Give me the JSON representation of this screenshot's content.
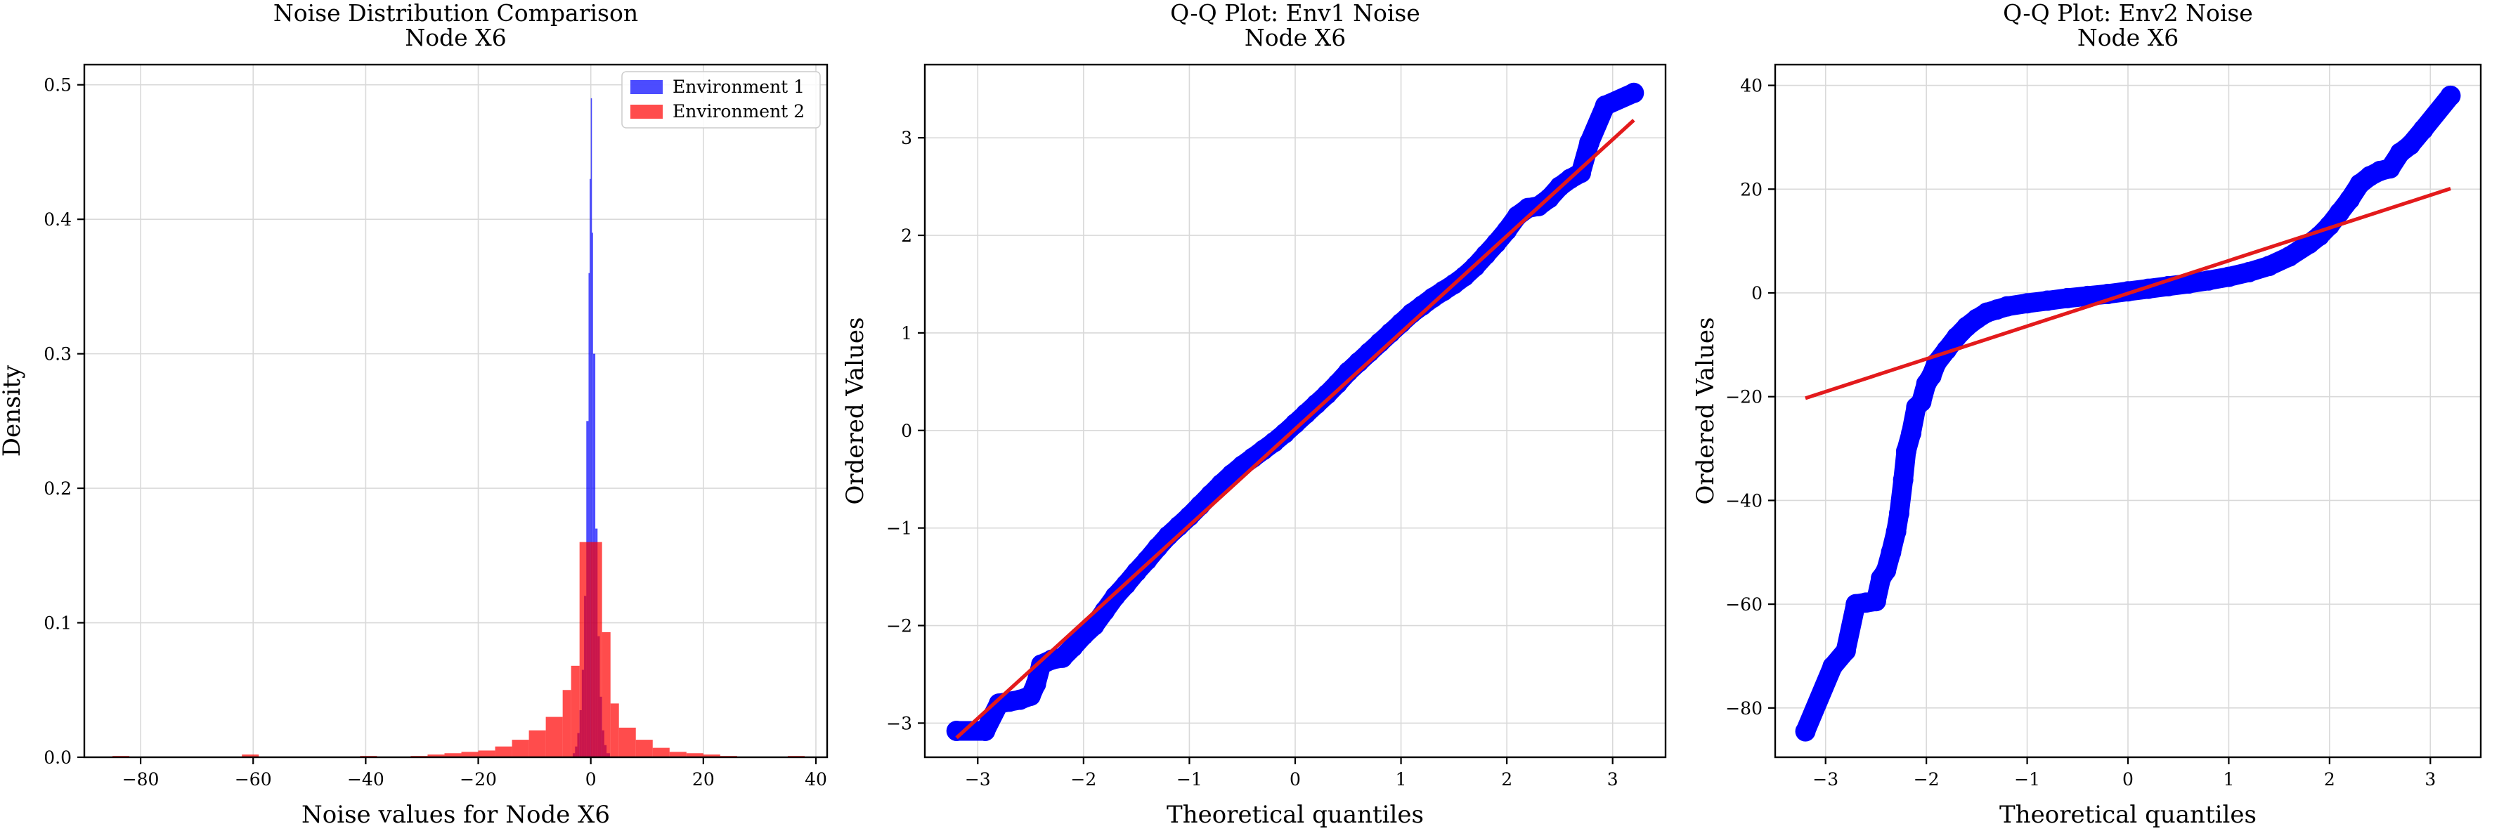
{
  "colors": {
    "env1": "#0000ff",
    "env2": "#ff0000",
    "grid": "#d9d9d9",
    "axis": "#000000",
    "fit_line": "#e31a1c"
  },
  "chart_data": [
    {
      "type": "histogram",
      "title": "Noise Distribution Comparison",
      "subtitle": "Node X6",
      "xlabel": "Noise values for Node X6",
      "ylabel": "Density",
      "xlim": [
        -90,
        42
      ],
      "ylim": [
        0,
        0.515
      ],
      "xticks": [
        -80,
        -60,
        -40,
        -20,
        0,
        20,
        40
      ],
      "yticks": [
        0.0,
        0.1,
        0.2,
        0.3,
        0.4,
        0.5
      ],
      "grid": true,
      "legend_position": "upper right",
      "series": [
        {
          "name": "Environment 1",
          "color": "#0000ff",
          "opacity": 0.7,
          "bins": [
            [
              -3.2,
              -2.8,
              0.003
            ],
            [
              -2.8,
              -2.4,
              0.008
            ],
            [
              -2.4,
              -2.0,
              0.018
            ],
            [
              -2.0,
              -1.6,
              0.035
            ],
            [
              -1.6,
              -1.2,
              0.065
            ],
            [
              -1.2,
              -0.8,
              0.12
            ],
            [
              -0.8,
              -0.4,
              0.25
            ],
            [
              -0.4,
              -0.2,
              0.36
            ],
            [
              -0.2,
              0.0,
              0.43
            ],
            [
              0.0,
              0.2,
              0.49
            ],
            [
              0.2,
              0.4,
              0.39
            ],
            [
              0.4,
              0.8,
              0.3
            ],
            [
              0.8,
              1.2,
              0.17
            ],
            [
              1.2,
              1.6,
              0.09
            ],
            [
              1.6,
              2.0,
              0.045
            ],
            [
              2.0,
              2.4,
              0.02
            ],
            [
              2.4,
              2.8,
              0.009
            ],
            [
              2.8,
              3.4,
              0.003
            ]
          ]
        },
        {
          "name": "Environment 2",
          "color": "#ff0000",
          "opacity": 0.7,
          "bins": [
            [
              -85,
              -82,
              0.001
            ],
            [
              -62,
              -59,
              0.002
            ],
            [
              -41,
              -38,
              0.001
            ],
            [
              -32,
              -29,
              0.001
            ],
            [
              -29,
              -26,
              0.002
            ],
            [
              -26,
              -23,
              0.003
            ],
            [
              -23,
              -20,
              0.004
            ],
            [
              -20,
              -17,
              0.005
            ],
            [
              -17,
              -14,
              0.008
            ],
            [
              -14,
              -11,
              0.013
            ],
            [
              -11,
              -8,
              0.02
            ],
            [
              -8,
              -5,
              0.03
            ],
            [
              -5,
              -3.5,
              0.05
            ],
            [
              -3.5,
              -2,
              0.068
            ],
            [
              -2,
              0,
              0.16
            ],
            [
              0,
              2,
              0.16
            ],
            [
              2,
              3.5,
              0.093
            ],
            [
              3.5,
              5,
              0.04
            ],
            [
              5,
              8,
              0.022
            ],
            [
              8,
              11,
              0.013
            ],
            [
              11,
              14,
              0.007
            ],
            [
              14,
              17,
              0.004
            ],
            [
              17,
              20,
              0.003
            ],
            [
              20,
              23,
              0.002
            ],
            [
              23,
              26,
              0.001
            ],
            [
              35,
              38,
              0.001
            ]
          ]
        }
      ]
    },
    {
      "type": "scatter",
      "title": "Q-Q Plot: Env1 Noise",
      "subtitle": "Node X6",
      "xlabel": "Theoretical quantiles",
      "ylabel": "Ordered Values",
      "xlim": [
        -3.5,
        3.5
      ],
      "ylim": [
        -3.35,
        3.75
      ],
      "xticks": [
        -3,
        -2,
        -1,
        0,
        1,
        2,
        3
      ],
      "yticks": [
        -3,
        -2,
        -1,
        0,
        1,
        2,
        3
      ],
      "grid": true,
      "series": [
        {
          "name": "",
          "color": "#0000ff",
          "points": [
            [
              -3.2,
              -3.08
            ],
            [
              -2.93,
              -3.08
            ],
            [
              -2.8,
              -2.8
            ],
            [
              -2.7,
              -2.78
            ],
            [
              -2.6,
              -2.76
            ],
            [
              -2.5,
              -2.72
            ],
            [
              -2.45,
              -2.6
            ],
            [
              -2.4,
              -2.4
            ],
            [
              -2.3,
              -2.35
            ],
            [
              -2.2,
              -2.33
            ],
            [
              -2.1,
              -2.22
            ],
            [
              -2.0,
              -2.1
            ],
            [
              -1.9,
              -2.0
            ],
            [
              -1.8,
              -1.85
            ],
            [
              -1.7,
              -1.7
            ],
            [
              -1.6,
              -1.58
            ],
            [
              -1.5,
              -1.45
            ],
            [
              -1.4,
              -1.33
            ],
            [
              -1.3,
              -1.2
            ],
            [
              -1.2,
              -1.08
            ],
            [
              -1.1,
              -0.98
            ],
            [
              -1.0,
              -0.88
            ],
            [
              -0.9,
              -0.77
            ],
            [
              -0.8,
              -0.66
            ],
            [
              -0.7,
              -0.55
            ],
            [
              -0.6,
              -0.45
            ],
            [
              -0.5,
              -0.36
            ],
            [
              -0.4,
              -0.28
            ],
            [
              -0.3,
              -0.2
            ],
            [
              -0.2,
              -0.12
            ],
            [
              -0.1,
              -0.03
            ],
            [
              0.0,
              0.07
            ],
            [
              0.1,
              0.17
            ],
            [
              0.2,
              0.27
            ],
            [
              0.3,
              0.37
            ],
            [
              0.4,
              0.48
            ],
            [
              0.5,
              0.6
            ],
            [
              0.6,
              0.7
            ],
            [
              0.7,
              0.8
            ],
            [
              0.8,
              0.9
            ],
            [
              0.9,
              1.0
            ],
            [
              1.0,
              1.1
            ],
            [
              1.1,
              1.2
            ],
            [
              1.2,
              1.28
            ],
            [
              1.3,
              1.36
            ],
            [
              1.4,
              1.43
            ],
            [
              1.5,
              1.5
            ],
            [
              1.6,
              1.58
            ],
            [
              1.7,
              1.68
            ],
            [
              1.8,
              1.8
            ],
            [
              1.9,
              1.92
            ],
            [
              2.0,
              2.05
            ],
            [
              2.1,
              2.2
            ],
            [
              2.2,
              2.28
            ],
            [
              2.3,
              2.3
            ],
            [
              2.4,
              2.38
            ],
            [
              2.5,
              2.5
            ],
            [
              2.6,
              2.58
            ],
            [
              2.7,
              2.64
            ],
            [
              2.78,
              2.95
            ],
            [
              2.93,
              3.33
            ],
            [
              3.2,
              3.46
            ]
          ]
        },
        {
          "name": "",
          "type": "line",
          "color": "#e31a1c",
          "points": [
            [
              -3.2,
              -3.15
            ],
            [
              3.2,
              3.18
            ]
          ]
        }
      ]
    },
    {
      "type": "scatter",
      "title": "Q-Q Plot: Env2 Noise",
      "subtitle": "Node X6",
      "xlabel": "Theoretical quantiles",
      "ylabel": "Ordered Values",
      "xlim": [
        -3.5,
        3.5
      ],
      "ylim": [
        -89.5,
        44
      ],
      "xticks": [
        -3,
        -2,
        -1,
        0,
        1,
        2,
        3
      ],
      "yticks": [
        -80,
        -60,
        -40,
        -20,
        0,
        20,
        40
      ],
      "grid": true,
      "series": [
        {
          "name": "",
          "color": "#0000ff",
          "points": [
            [
              -3.2,
              -84.5
            ],
            [
              -2.93,
              -72
            ],
            [
              -2.8,
              -69
            ],
            [
              -2.7,
              -60
            ],
            [
              -2.6,
              -59.7
            ],
            [
              -2.5,
              -59.4
            ],
            [
              -2.45,
              -55
            ],
            [
              -2.4,
              -53.5
            ],
            [
              -2.35,
              -50
            ],
            [
              -2.3,
              -46
            ],
            [
              -2.27,
              -42.5
            ],
            [
              -2.23,
              -36
            ],
            [
              -2.2,
              -30.5
            ],
            [
              -2.15,
              -27
            ],
            [
              -2.1,
              -22
            ],
            [
              -2.05,
              -21
            ],
            [
              -2.0,
              -17.5
            ],
            [
              -1.95,
              -16
            ],
            [
              -1.9,
              -13.5
            ],
            [
              -1.8,
              -11
            ],
            [
              -1.7,
              -8.5
            ],
            [
              -1.6,
              -6.5
            ],
            [
              -1.5,
              -5
            ],
            [
              -1.4,
              -3.8
            ],
            [
              -1.3,
              -3.2
            ],
            [
              -1.2,
              -2.6
            ],
            [
              -1.0,
              -2.0
            ],
            [
              -0.8,
              -1.5
            ],
            [
              -0.6,
              -1.0
            ],
            [
              -0.4,
              -0.6
            ],
            [
              -0.2,
              -0.2
            ],
            [
              0.0,
              0.3
            ],
            [
              0.2,
              0.8
            ],
            [
              0.4,
              1.3
            ],
            [
              0.6,
              1.8
            ],
            [
              0.8,
              2.4
            ],
            [
              1.0,
              3.1
            ],
            [
              1.2,
              4.0
            ],
            [
              1.4,
              5.2
            ],
            [
              1.6,
              7.0
            ],
            [
              1.8,
              9.5
            ],
            [
              1.9,
              11
            ],
            [
              2.0,
              13
            ],
            [
              2.1,
              15.5
            ],
            [
              2.2,
              18
            ],
            [
              2.3,
              21
            ],
            [
              2.4,
              22.5
            ],
            [
              2.5,
              23.5
            ],
            [
              2.6,
              24
            ],
            [
              2.7,
              27
            ],
            [
              2.8,
              28.5
            ],
            [
              2.93,
              31.5
            ],
            [
              3.2,
              38
            ]
          ]
        },
        {
          "name": "",
          "type": "line",
          "color": "#e31a1c",
          "points": [
            [
              -3.2,
              -20.3
            ],
            [
              3.2,
              20.1
            ]
          ]
        }
      ]
    }
  ]
}
